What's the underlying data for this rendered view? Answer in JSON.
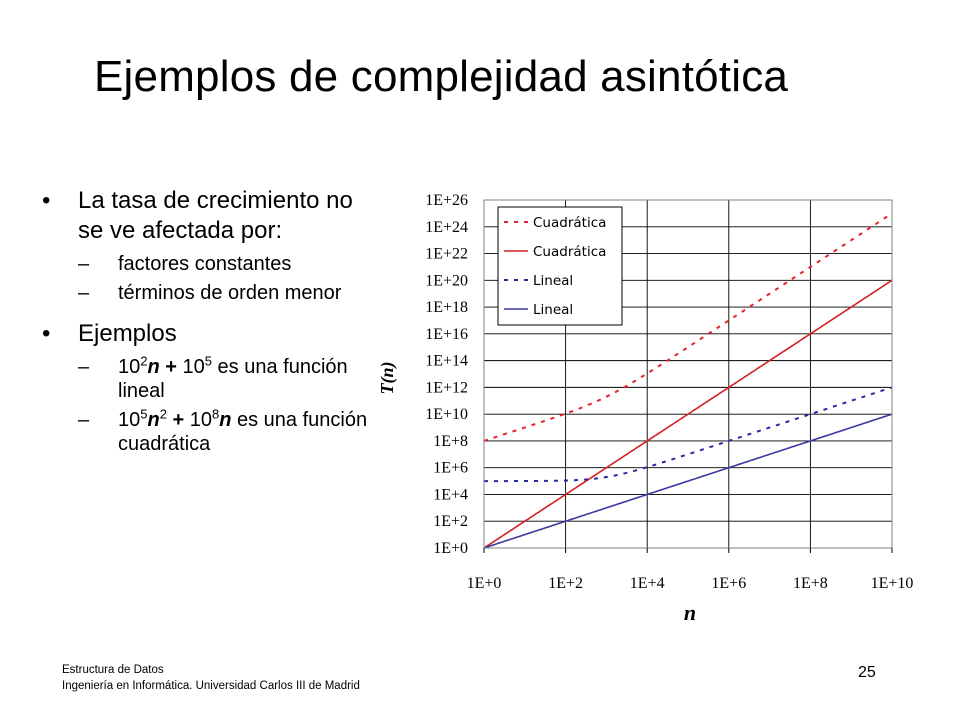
{
  "slide": {
    "title": "Ejemplos de complejidad asintótica",
    "page_number": "25",
    "footer_line1": "Estructura de Datos",
    "footer_line2": "Ingeniería  en Informática. Universidad Carlos III de Madrid"
  },
  "bullets": {
    "b1": {
      "marker": "•",
      "text": "La tasa de crecimiento no se ve afectada por:",
      "sub": [
        {
          "dash": "–",
          "text": "factores constantes"
        },
        {
          "dash": "–",
          "text": "términos de orden menor"
        }
      ]
    },
    "b2": {
      "marker": "•",
      "text": "Ejemplos",
      "ex1": {
        "dash": "–",
        "c1": "10",
        "e1": "2",
        "v1": "n",
        "op": " + ",
        "c2": "10",
        "e2": "5",
        "rest": " es una función lineal"
      },
      "ex2": {
        "dash": "–",
        "c1": "10",
        "e1": "5",
        "v1": "n",
        "e1b": "2",
        "op": " + ",
        "c2": "10",
        "e2": "8",
        "v2": "n",
        "rest": " es una función cuadrática"
      }
    }
  },
  "chart_data": {
    "type": "line",
    "xlabel": "n",
    "ylabel": "T(n)",
    "log_scale": {
      "x": true,
      "y": true
    },
    "xlim_log10": [
      0,
      10
    ],
    "ylim_log10": [
      0,
      26
    ],
    "x_ticks": [
      "1E+0",
      "1E+2",
      "1E+4",
      "1E+6",
      "1E+8",
      "1E+10"
    ],
    "y_ticks": [
      "1E+0",
      "1E+2",
      "1E+4",
      "1E+6",
      "1E+8",
      "1E+10",
      "1E+12",
      "1E+14",
      "1E+16",
      "1E+18",
      "1E+20",
      "1E+22",
      "1E+24",
      "1E+26"
    ],
    "grid": true,
    "legend_position": "top-left",
    "series": [
      {
        "name": "Cuadrática",
        "formula": "T(n) = 10^5 n^2 + 10^8 n",
        "style": "dashed",
        "color": "#e8202a"
      },
      {
        "name": "Cuadrática",
        "formula": "T(n) = n^2",
        "style": "solid",
        "color": "#d42020"
      },
      {
        "name": "Lineal",
        "formula": "T(n) = 10^2 n + 10^5",
        "style": "dashed",
        "color": "#2a2aa0"
      },
      {
        "name": "Lineal",
        "formula": "T(n) = n",
        "style": "solid",
        "color": "#3a3aa0"
      }
    ]
  }
}
